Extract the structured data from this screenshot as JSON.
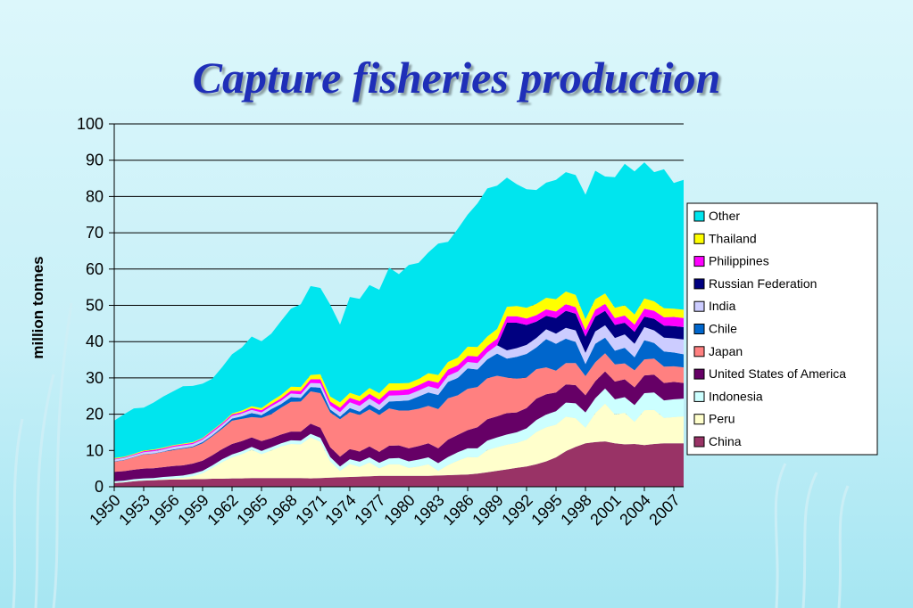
{
  "slide": {
    "title": "Capture fisheries production"
  },
  "chart_data": {
    "type": "area",
    "stacked": true,
    "ylabel": "million tonnes",
    "xlabel": "",
    "ylim": [
      0,
      100
    ],
    "yticks": [
      0,
      10,
      20,
      30,
      40,
      50,
      60,
      70,
      80,
      90,
      100
    ],
    "grid": true,
    "legend_position": "right",
    "x": [
      1950,
      1951,
      1952,
      1953,
      1954,
      1955,
      1956,
      1957,
      1958,
      1959,
      1960,
      1961,
      1962,
      1963,
      1964,
      1965,
      1966,
      1967,
      1968,
      1969,
      1970,
      1971,
      1972,
      1973,
      1974,
      1975,
      1976,
      1977,
      1978,
      1979,
      1980,
      1981,
      1982,
      1983,
      1984,
      1985,
      1986,
      1987,
      1988,
      1989,
      1990,
      1991,
      1992,
      1993,
      1994,
      1995,
      1996,
      1997,
      1998,
      1999,
      2000,
      2001,
      2002,
      2003,
      2004,
      2005,
      2006,
      2007,
      2008
    ],
    "x_tick_labels": [
      "1950",
      "1953",
      "1956",
      "1959",
      "1962",
      "1965",
      "1968",
      "1971",
      "1974",
      "1977",
      "1980",
      "1983",
      "1986",
      "1989",
      "1992",
      "1995",
      "1998",
      "2001",
      "2004",
      "2007"
    ],
    "series": [
      {
        "name": "China",
        "color": "#993366",
        "values": [
          1.0,
          1.2,
          1.5,
          1.7,
          1.8,
          1.9,
          2.0,
          2.0,
          2.1,
          2.1,
          2.2,
          2.2,
          2.3,
          2.3,
          2.4,
          2.4,
          2.4,
          2.4,
          2.4,
          2.4,
          2.3,
          2.4,
          2.5,
          2.6,
          2.7,
          2.8,
          2.9,
          3.0,
          3.0,
          3.0,
          3.0,
          3.0,
          3.0,
          3.1,
          3.2,
          3.3,
          3.4,
          3.6,
          4.0,
          4.4,
          4.8,
          5.2,
          5.6,
          6.2,
          7.0,
          8.1,
          9.8,
          11.0,
          12.0,
          12.3,
          12.5,
          12.0,
          11.7,
          11.8,
          11.5,
          11.8,
          12.0,
          12.0,
          12.0
        ]
      },
      {
        "name": "Peru",
        "color": "#ffffcc",
        "values": [
          0.1,
          0.1,
          0.1,
          0.1,
          0.1,
          0.2,
          0.3,
          0.5,
          0.8,
          1.6,
          3.0,
          4.6,
          5.8,
          6.7,
          7.8,
          6.6,
          7.6,
          8.7,
          9.4,
          9.3,
          11.3,
          10.0,
          4.5,
          1.8,
          3.6,
          2.7,
          3.8,
          2.1,
          3.2,
          3.2,
          2.2,
          2.6,
          3.2,
          1.3,
          2.8,
          3.9,
          4.8,
          4.5,
          6.1,
          6.5,
          6.8,
          6.9,
          7.4,
          8.9,
          9.4,
          9.0,
          9.5,
          7.9,
          4.3,
          8.0,
          10.4,
          7.9,
          8.7,
          6.1,
          9.6,
          9.4,
          7.0,
          7.2,
          7.4
        ]
      },
      {
        "name": "Indonesia",
        "color": "#ccffff",
        "values": [
          0.4,
          0.4,
          0.5,
          0.5,
          0.5,
          0.6,
          0.6,
          0.6,
          0.7,
          0.7,
          0.7,
          0.8,
          0.8,
          0.8,
          0.8,
          0.9,
          0.9,
          0.9,
          1.0,
          1.0,
          1.0,
          1.1,
          1.2,
          1.2,
          1.3,
          1.4,
          1.4,
          1.5,
          1.6,
          1.7,
          1.8,
          1.9,
          1.9,
          2.1,
          2.2,
          2.3,
          2.4,
          2.5,
          2.6,
          2.7,
          2.8,
          2.9,
          3.1,
          3.3,
          3.5,
          3.7,
          3.9,
          4.1,
          4.2,
          4.1,
          4.2,
          4.2,
          4.3,
          4.6,
          4.7,
          4.8,
          4.8,
          4.9,
          4.9
        ]
      },
      {
        "name": "United States of America",
        "color": "#660066",
        "values": [
          2.6,
          2.6,
          2.6,
          2.7,
          2.7,
          2.7,
          2.8,
          2.8,
          2.8,
          2.8,
          2.8,
          2.8,
          2.9,
          2.8,
          2.6,
          2.7,
          2.5,
          2.4,
          2.4,
          2.5,
          2.8,
          2.8,
          2.7,
          2.7,
          2.8,
          2.8,
          3.0,
          3.0,
          3.5,
          3.5,
          3.6,
          3.7,
          3.9,
          4.1,
          4.8,
          4.8,
          5.0,
          5.8,
          5.9,
          5.8,
          5.9,
          5.5,
          5.6,
          5.9,
          5.6,
          5.2,
          5.0,
          5.0,
          4.7,
          4.7,
          4.7,
          4.9,
          4.9,
          4.9,
          4.9,
          4.9,
          4.8,
          4.8,
          4.3
        ]
      },
      {
        "name": "Japan",
        "color": "#ff8080",
        "values": [
          2.8,
          3.0,
          3.4,
          3.9,
          4.0,
          4.2,
          4.4,
          4.6,
          4.5,
          4.8,
          5.2,
          5.6,
          6.4,
          6.1,
          5.6,
          6.4,
          6.6,
          7.4,
          8.2,
          8.3,
          8.9,
          9.5,
          9.6,
          10.3,
          10.2,
          10.1,
          10.2,
          10.2,
          10.3,
          9.6,
          10.4,
          10.3,
          10.3,
          10.8,
          11.4,
          10.9,
          11.4,
          11.1,
          11.3,
          11.2,
          9.8,
          9.3,
          8.4,
          8.1,
          7.4,
          6.0,
          5.9,
          6.1,
          5.3,
          5.2,
          5.0,
          4.7,
          4.4,
          4.7,
          4.4,
          4.4,
          4.5,
          4.3,
          4.3
        ]
      },
      {
        "name": "Chile",
        "color": "#0066cc",
        "values": [
          0.1,
          0.1,
          0.1,
          0.1,
          0.1,
          0.1,
          0.2,
          0.2,
          0.2,
          0.3,
          0.3,
          0.4,
          0.6,
          0.7,
          1.1,
          0.7,
          1.4,
          1.0,
          1.3,
          1.0,
          1.2,
          1.5,
          0.8,
          0.7,
          1.1,
          0.9,
          1.4,
          1.3,
          1.9,
          2.6,
          2.8,
          3.4,
          3.7,
          3.9,
          4.5,
          4.8,
          5.6,
          4.8,
          5.2,
          6.1,
          5.2,
          6.0,
          6.5,
          6.0,
          7.8,
          7.4,
          6.7,
          5.8,
          3.3,
          5.1,
          4.3,
          3.8,
          4.3,
          3.6,
          5.3,
          4.3,
          4.2,
          3.8,
          3.6
        ]
      },
      {
        "name": "India",
        "color": "#ccccff",
        "values": [
          0.5,
          0.5,
          0.5,
          0.5,
          0.6,
          0.6,
          0.7,
          0.7,
          0.7,
          0.7,
          0.8,
          0.7,
          0.7,
          0.8,
          0.9,
          0.8,
          0.8,
          0.9,
          1.0,
          1.0,
          1.1,
          1.2,
          1.1,
          1.3,
          1.6,
          1.6,
          1.6,
          1.5,
          1.6,
          1.6,
          1.6,
          1.6,
          1.7,
          1.7,
          1.7,
          1.8,
          1.8,
          1.8,
          1.9,
          2.3,
          2.3,
          2.4,
          2.5,
          2.6,
          2.7,
          2.8,
          3.0,
          3.2,
          3.1,
          3.4,
          3.4,
          3.5,
          3.7,
          3.7,
          3.6,
          3.5,
          3.8,
          3.9,
          4.1
        ]
      },
      {
        "name": "Russian Federation",
        "color": "#000080",
        "values": [
          0,
          0,
          0,
          0,
          0,
          0,
          0,
          0,
          0,
          0,
          0,
          0,
          0,
          0,
          0,
          0,
          0,
          0,
          0,
          0,
          0,
          0,
          0,
          0,
          0,
          0,
          0,
          0,
          0,
          0,
          0,
          0,
          0,
          0,
          0,
          0,
          0,
          0,
          0,
          0,
          7.6,
          7.0,
          5.5,
          4.5,
          3.7,
          4.3,
          4.7,
          4.6,
          4.5,
          4.1,
          4.0,
          3.6,
          3.2,
          3.3,
          2.9,
          3.2,
          3.3,
          3.4,
          3.4
        ]
      },
      {
        "name": "Philippines",
        "color": "#ff00ff",
        "values": [
          0.2,
          0.2,
          0.2,
          0.3,
          0.3,
          0.3,
          0.3,
          0.3,
          0.3,
          0.3,
          0.4,
          0.4,
          0.4,
          0.4,
          0.5,
          0.6,
          0.6,
          0.7,
          0.8,
          0.9,
          1.0,
          1.1,
          1.1,
          1.2,
          1.2,
          1.3,
          1.3,
          1.4,
          1.4,
          1.4,
          1.5,
          1.5,
          1.6,
          1.7,
          1.7,
          1.7,
          1.7,
          1.8,
          1.8,
          1.8,
          1.8,
          1.8,
          1.8,
          1.8,
          1.8,
          1.8,
          1.8,
          1.8,
          1.8,
          1.9,
          1.9,
          1.9,
          2.0,
          2.0,
          2.2,
          2.2,
          2.3,
          2.5,
          2.5
        ]
      },
      {
        "name": "Thailand",
        "color": "#ffff00",
        "values": [
          0.2,
          0.2,
          0.2,
          0.2,
          0.2,
          0.2,
          0.2,
          0.2,
          0.2,
          0.2,
          0.2,
          0.2,
          0.3,
          0.4,
          0.5,
          0.6,
          0.8,
          0.9,
          1.1,
          1.1,
          1.2,
          1.4,
          1.4,
          1.5,
          1.4,
          1.4,
          1.6,
          1.8,
          2.0,
          1.9,
          1.7,
          1.7,
          2.0,
          2.1,
          2.1,
          2.1,
          2.5,
          2.6,
          2.6,
          2.7,
          2.6,
          2.8,
          2.9,
          3.1,
          3.2,
          3.4,
          3.5,
          3.4,
          3.0,
          2.9,
          2.9,
          2.8,
          2.8,
          2.8,
          2.8,
          2.6,
          2.5,
          2.3,
          2.3
        ]
      },
      {
        "name": "Other",
        "color": "#00e5ee",
        "values": [
          10.3,
          11.7,
          12.5,
          11.8,
          12.9,
          14.1,
          14.8,
          15.8,
          15.5,
          14.9,
          14.2,
          15.3,
          16.3,
          17.4,
          19.2,
          18.4,
          18.6,
          20.4,
          21.5,
          22.8,
          24.5,
          23.8,
          25.3,
          21.4,
          26.4,
          26.8,
          28.4,
          28.5,
          31.9,
          30.1,
          32.5,
          32.0,
          33.3,
          36.2,
          33.1,
          35.5,
          36.4,
          39.6,
          40.8,
          39.5,
          35.6,
          33.6,
          32.7,
          31.4,
          31.7,
          32.9,
          32.9,
          33.0,
          34.3,
          35.4,
          32.2,
          36.0,
          39.0,
          39.4,
          37.5,
          35.6,
          38.3,
          34.6,
          35.8
        ]
      }
    ]
  }
}
